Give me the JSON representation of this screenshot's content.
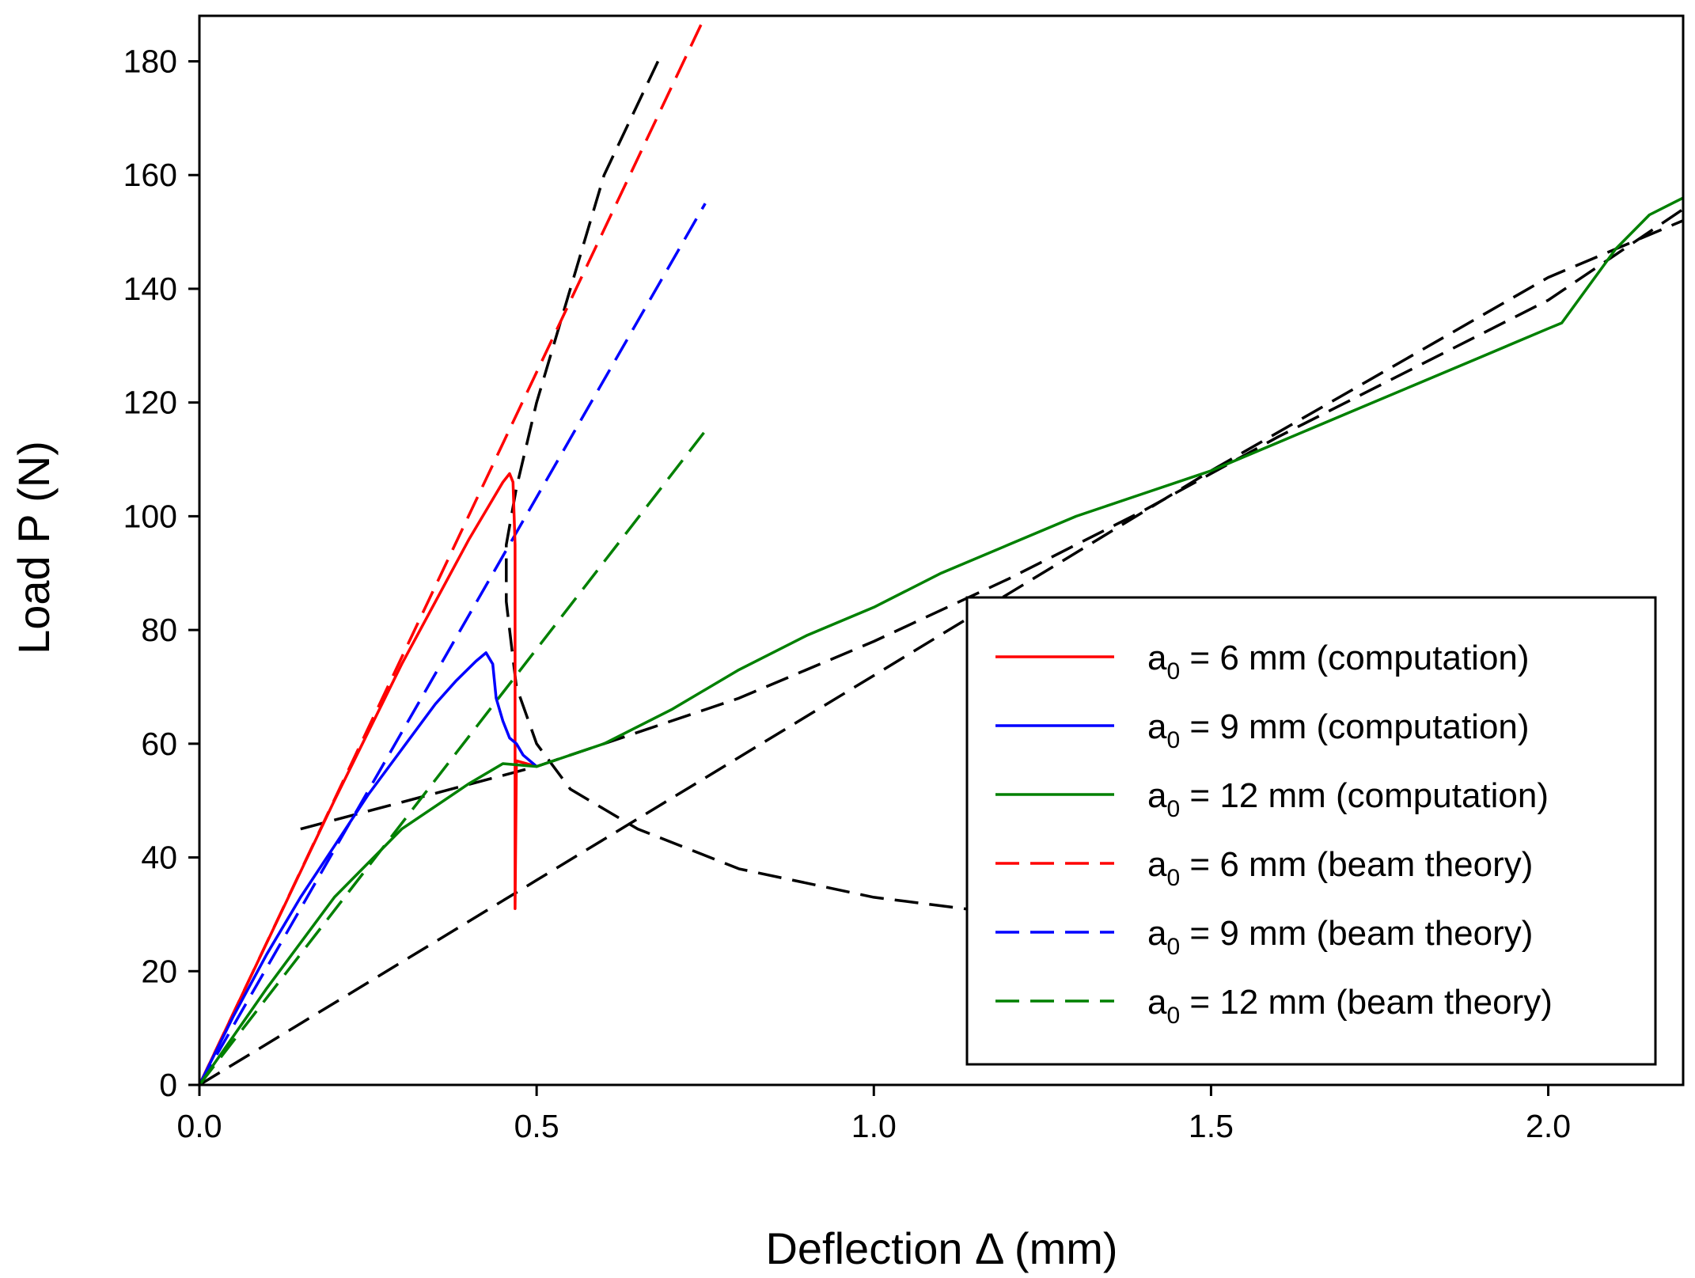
{
  "chart_data": {
    "type": "line",
    "title": "",
    "xlabel": "Deflection Δ (mm)",
    "ylabel": "Load P (N)",
    "xlim": [
      0,
      2.2
    ],
    "ylim": [
      0,
      188
    ],
    "xticks": [
      0.0,
      0.5,
      1.0,
      1.5,
      2.0
    ],
    "xtick_labels": [
      "0.0",
      "0.5",
      "1.0",
      "1.5",
      "2.0"
    ],
    "yticks": [
      0,
      20,
      40,
      60,
      80,
      100,
      120,
      140,
      160,
      180
    ],
    "ytick_labels": [
      "0",
      "20",
      "40",
      "60",
      "80",
      "100",
      "120",
      "140",
      "160",
      "180"
    ],
    "grid": false,
    "legend_position": "lower-right",
    "colors": {
      "a6": "#ff0000",
      "a9": "#0000ff",
      "a12": "#008000",
      "envelope": "#000000"
    },
    "series": [
      {
        "name": "a0 = 6 mm (computation)",
        "legend": {
          "pre": "a",
          "sub": "0",
          "post": " = 6 mm (computation)"
        },
        "color": "#ff0000",
        "style": "solid",
        "x": [
          0,
          0.1,
          0.2,
          0.3,
          0.35,
          0.4,
          0.43,
          0.45,
          0.46,
          0.465,
          0.468,
          0.468,
          0.47,
          0.5
        ],
        "y": [
          0,
          25,
          50,
          74,
          85,
          96,
          102,
          106,
          107.5,
          106,
          95,
          31,
          57,
          56
        ]
      },
      {
        "name": "a0 = 9 mm (computation)",
        "legend": {
          "pre": "a",
          "sub": "0",
          "post": " = 9 mm (computation)"
        },
        "color": "#0000ff",
        "style": "solid",
        "x": [
          0,
          0.05,
          0.1,
          0.15,
          0.2,
          0.25,
          0.3,
          0.35,
          0.38,
          0.41,
          0.425,
          0.435,
          0.44,
          0.45,
          0.46,
          0.47,
          0.48,
          0.5
        ],
        "y": [
          0,
          12,
          23,
          33,
          42,
          51,
          59,
          67,
          71,
          74.5,
          76,
          74,
          68,
          64,
          61,
          60,
          58,
          56
        ]
      },
      {
        "name": "a0 = 12 mm (computation)",
        "legend": {
          "pre": "a",
          "sub": "0",
          "post": " = 12 mm (computation)"
        },
        "color": "#008000",
        "style": "solid",
        "x": [
          0,
          0.1,
          0.2,
          0.3,
          0.4,
          0.45,
          0.5,
          0.6,
          0.7,
          0.8,
          0.9,
          1.0,
          1.1,
          1.2,
          1.3,
          1.4,
          1.5,
          1.6,
          1.7,
          1.8,
          1.9,
          2.0,
          2.02,
          2.1,
          2.15,
          2.2
        ],
        "y": [
          0,
          17,
          33,
          45,
          53,
          56.5,
          56,
          60,
          66,
          73,
          79,
          84,
          90,
          95,
          100,
          104,
          108,
          113,
          118,
          123,
          128,
          133,
          134,
          147,
          153,
          156
        ]
      },
      {
        "name": "a0 = 6 mm (beam theory)",
        "legend": {
          "pre": "a",
          "sub": "0",
          "post": " = 6 mm (beam theory)"
        },
        "color": "#ff0000",
        "style": "dashed",
        "x": [
          0,
          0.75
        ],
        "y": [
          0,
          188
        ]
      },
      {
        "name": "a0 = 9 mm (beam theory)",
        "legend": {
          "pre": "a",
          "sub": "0",
          "post": " = 9 mm (beam theory)"
        },
        "color": "#0000ff",
        "style": "dashed",
        "x": [
          0,
          0.75
        ],
        "y": [
          0,
          155
        ]
      },
      {
        "name": "a0 = 12 mm (beam theory)",
        "legend": {
          "pre": "a",
          "sub": "0",
          "post": " = 12 mm (beam theory)"
        },
        "color": "#008000",
        "style": "dashed",
        "x": [
          0,
          0.75
        ],
        "y": [
          0,
          115
        ]
      },
      {
        "name": "reference line 1",
        "color": "#000000",
        "style": "dashed",
        "legend": null,
        "x": [
          0.15,
          0.5,
          0.8,
          1.0,
          1.2,
          1.4,
          1.6,
          1.8,
          2.0,
          2.2
        ],
        "y": [
          45,
          56,
          68,
          78,
          89,
          101,
          114,
          126,
          138,
          154
        ]
      },
      {
        "name": "reference line 2",
        "color": "#000000",
        "style": "dashed",
        "legend": null,
        "x": [
          0,
          0.5,
          1.0,
          1.5,
          2.0,
          2.2
        ],
        "y": [
          0,
          36,
          72,
          108,
          142,
          152
        ]
      },
      {
        "name": "crack-growth envelope",
        "color": "#000000",
        "style": "dashed",
        "legend": null,
        "x": [
          0.68,
          0.6,
          0.55,
          0.5,
          0.47,
          0.455,
          0.455,
          0.46,
          0.47,
          0.5,
          0.55,
          0.65,
          0.8,
          1.0,
          1.2
        ],
        "y": [
          180,
          160,
          140,
          120,
          105,
          95,
          85,
          80,
          70,
          60,
          52,
          45,
          38,
          33,
          30
        ]
      }
    ]
  }
}
